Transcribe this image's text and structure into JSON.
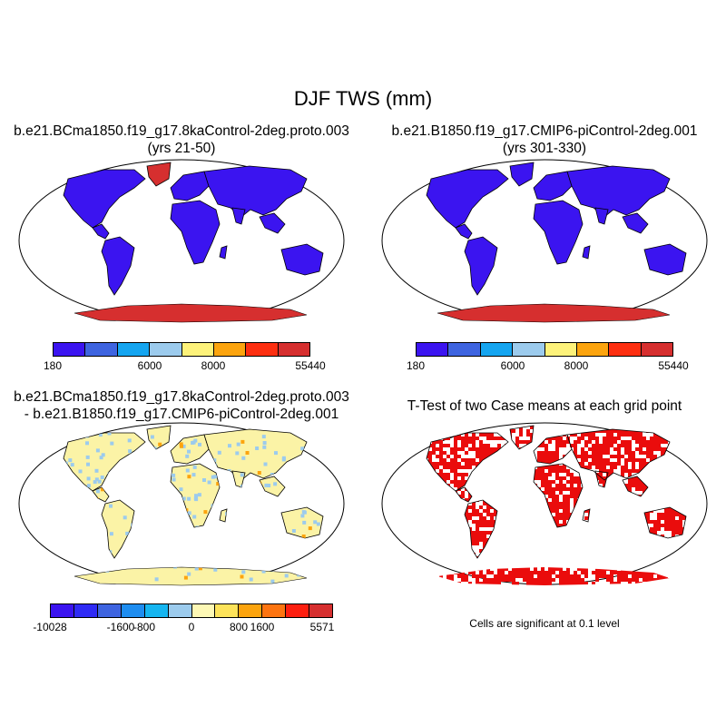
{
  "title": "DJF TWS (mm)",
  "panels": {
    "top_left": {
      "title_line1": "b.e21.BCma1850.f19_g17.8kaControl-2deg.proto.003",
      "title_line2": "(yrs 21-50)",
      "land_color": "#3b14f0",
      "ice_color": "#d62f2f",
      "colorbar": {
        "colors": [
          "#3b14f0",
          "#3e64e0",
          "#15a5f0",
          "#9ccbed",
          "#fdf27a",
          "#fca40e",
          "#fd2f10",
          "#d62f2f"
        ],
        "tick_labels": [
          "180",
          "6000",
          "8000",
          "55440"
        ]
      }
    },
    "top_right": {
      "title_line1": "b.e21.B1850.f19_g17.CMIP6-piControl-2deg.001",
      "title_line2": "(yrs 301-330)",
      "land_color": "#3b14f0",
      "ice_color": "#d62f2f",
      "colorbar": {
        "colors": [
          "#3b14f0",
          "#3e64e0",
          "#15a5f0",
          "#9ccbed",
          "#fdf27a",
          "#fca40e",
          "#fd2f10",
          "#d62f2f"
        ],
        "tick_labels": [
          "180",
          "6000",
          "8000",
          "55440"
        ]
      }
    },
    "bottom_left": {
      "title_line1": "b.e21.BCma1850.f19_g17.8kaControl-2deg.proto.003",
      "title_line2": "- b.e21.B1850.f19_g17.CMIP6-piControl-2deg.001",
      "land_color": "#fbf3a6",
      "accent_colors": [
        "#9ccbed",
        "#fca40e"
      ],
      "colorbar": {
        "colors": [
          "#3b14f0",
          "#2f2bf5",
          "#3e64e0",
          "#1e8df0",
          "#15b5f0",
          "#9ccbed",
          "#fdf8b5",
          "#fde35a",
          "#fca40e",
          "#fd7410",
          "#fd1f10",
          "#d62f2f"
        ],
        "tick_labels": [
          "-10028",
          "-1600",
          "-800",
          "0",
          "800",
          "1600",
          "5571"
        ]
      }
    },
    "bottom_right": {
      "title": "T-Test of two Case means at each grid point",
      "sig_color": "#ea0c0c",
      "note": "Cells are significant at 0.1 level"
    }
  }
}
